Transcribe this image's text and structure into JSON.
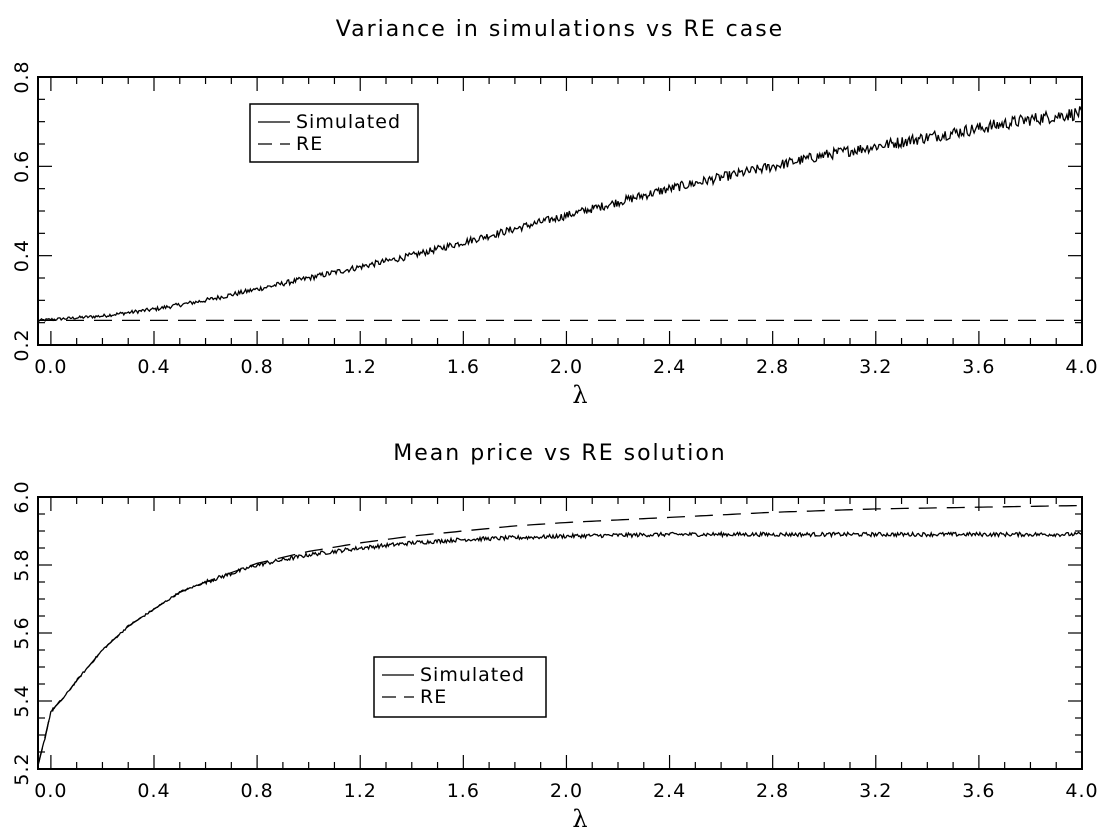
{
  "chart_data": [
    {
      "type": "line",
      "title": "Variance in simulations vs RE case",
      "xlabel": "λ",
      "ylabel": "",
      "xlim": [
        -0.05,
        4.0
      ],
      "ylim": [
        0.2,
        0.8
      ],
      "xticks": [
        "0.0",
        "0.4",
        "0.8",
        "1.2",
        "1.6",
        "2.0",
        "2.4",
        "2.8",
        "3.2",
        "3.6",
        "4.0"
      ],
      "yticks": [
        "0.2",
        "0.4",
        "0.6",
        "0.8"
      ],
      "legend": {
        "position": "upper-left",
        "entries": [
          "Simulated",
          "RE"
        ]
      },
      "series": [
        {
          "name": "Simulated",
          "style": "solid",
          "x": [
            -0.05,
            0.0,
            0.2,
            0.4,
            0.6,
            0.8,
            1.0,
            1.2,
            1.4,
            1.6,
            1.8,
            2.0,
            2.2,
            2.4,
            2.6,
            2.8,
            3.0,
            3.2,
            3.4,
            3.6,
            3.8,
            4.0
          ],
          "y": [
            0.255,
            0.257,
            0.265,
            0.28,
            0.3,
            0.325,
            0.35,
            0.375,
            0.4,
            0.43,
            0.46,
            0.49,
            0.52,
            0.55,
            0.575,
            0.6,
            0.625,
            0.645,
            0.665,
            0.685,
            0.705,
            0.72
          ]
        },
        {
          "name": "RE",
          "style": "dashed",
          "x": [
            -0.05,
            4.0
          ],
          "y": [
            0.255,
            0.255
          ]
        }
      ]
    },
    {
      "type": "line",
      "title": "Mean price vs RE solution",
      "xlabel": "λ",
      "ylabel": "",
      "xlim": [
        -0.05,
        4.0
      ],
      "ylim": [
        5.2,
        6.0
      ],
      "xticks": [
        "0.0",
        "0.4",
        "0.8",
        "1.2",
        "1.6",
        "2.0",
        "2.4",
        "2.8",
        "3.2",
        "3.6",
        "4.0"
      ],
      "yticks": [
        "5.2",
        "5.4",
        "5.6",
        "5.8",
        "6.0"
      ],
      "legend": {
        "position": "center-left",
        "entries": [
          "Simulated",
          "RE"
        ]
      },
      "series": [
        {
          "name": "Simulated",
          "style": "solid",
          "x": [
            -0.05,
            -0.02,
            0.0,
            0.05,
            0.1,
            0.2,
            0.3,
            0.4,
            0.5,
            0.6,
            0.8,
            1.0,
            1.2,
            1.4,
            1.6,
            1.8,
            2.0,
            2.4,
            2.8,
            3.2,
            3.6,
            4.0
          ],
          "y": [
            5.21,
            5.3,
            5.37,
            5.41,
            5.46,
            5.55,
            5.62,
            5.67,
            5.72,
            5.75,
            5.8,
            5.83,
            5.85,
            5.865,
            5.875,
            5.88,
            5.885,
            5.89,
            5.89,
            5.89,
            5.89,
            5.89
          ]
        },
        {
          "name": "RE",
          "style": "dashed",
          "x": [
            -0.05,
            -0.02,
            0.0,
            0.05,
            0.1,
            0.2,
            0.3,
            0.4,
            0.5,
            0.6,
            0.8,
            1.0,
            1.2,
            1.4,
            1.6,
            1.8,
            2.0,
            2.4,
            2.8,
            3.2,
            3.6,
            4.0
          ],
          "y": [
            5.21,
            5.3,
            5.37,
            5.41,
            5.46,
            5.55,
            5.62,
            5.67,
            5.72,
            5.75,
            5.805,
            5.84,
            5.865,
            5.885,
            5.9,
            5.915,
            5.925,
            5.94,
            5.955,
            5.965,
            5.97,
            5.975
          ]
        }
      ]
    }
  ]
}
